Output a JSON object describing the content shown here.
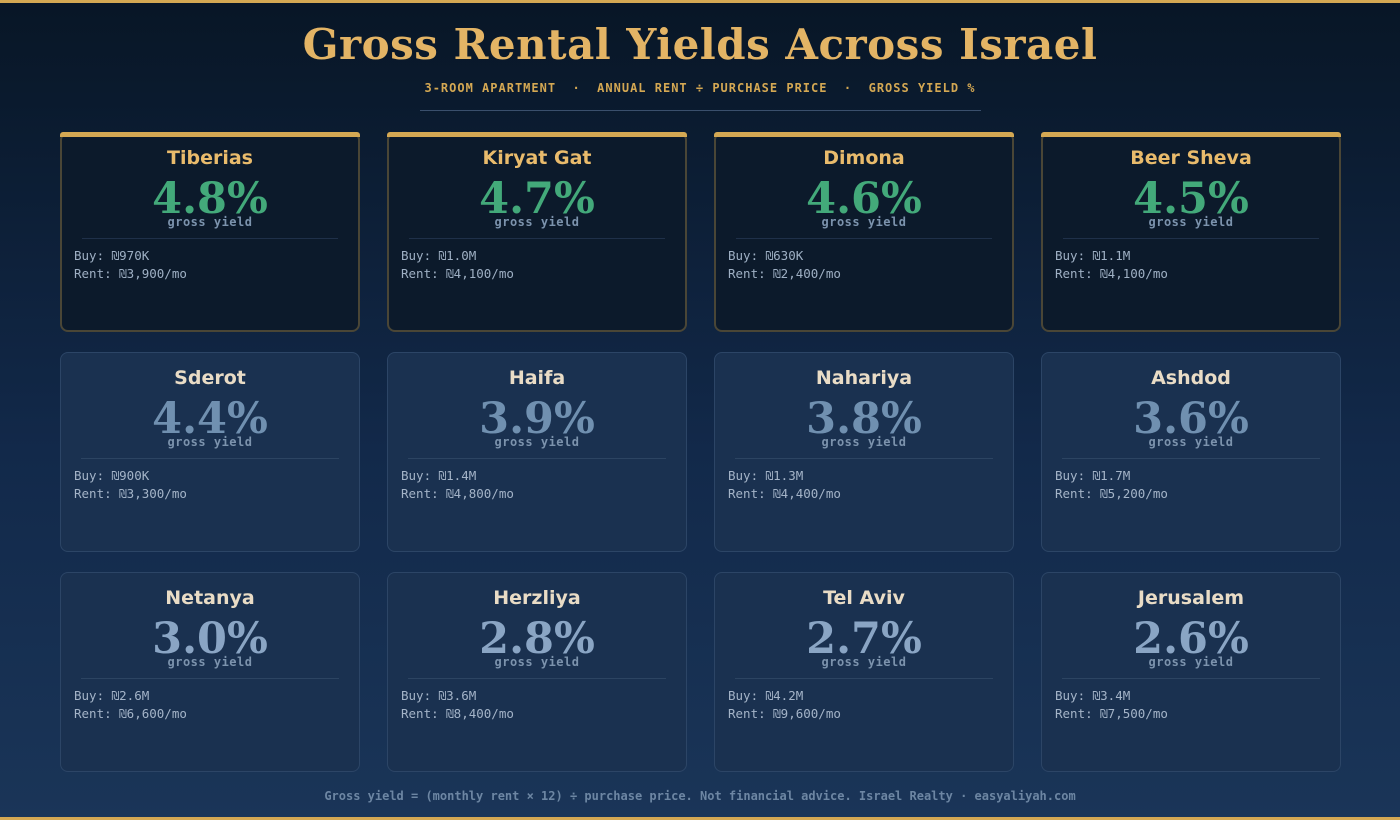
{
  "header": {
    "title": "Gross Rental Yields Across Israel",
    "subtitle": "3-ROOM APARTMENT  ·  ANNUAL RENT ÷ PURCHASE PRICE  ·  GROSS YIELD %"
  },
  "yield_label": "gross yield",
  "cities": [
    {
      "name": "Tiberias",
      "yield": "4.8%",
      "buy": "Buy: ₪970K",
      "rent": "Rent: ₪3,900/mo"
    },
    {
      "name": "Kiryat Gat",
      "yield": "4.7%",
      "buy": "Buy: ₪1.0M",
      "rent": "Rent: ₪4,100/mo"
    },
    {
      "name": "Dimona",
      "yield": "4.6%",
      "buy": "Buy: ₪630K",
      "rent": "Rent: ₪2,400/mo"
    },
    {
      "name": "Beer Sheva",
      "yield": "4.5%",
      "buy": "Buy: ₪1.1M",
      "rent": "Rent: ₪4,100/mo"
    },
    {
      "name": "Sderot",
      "yield": "4.4%",
      "buy": "Buy: ₪900K",
      "rent": "Rent: ₪3,300/mo"
    },
    {
      "name": "Haifa",
      "yield": "3.9%",
      "buy": "Buy: ₪1.4M",
      "rent": "Rent: ₪4,800/mo"
    },
    {
      "name": "Nahariya",
      "yield": "3.8%",
      "buy": "Buy: ₪1.3M",
      "rent": "Rent: ₪4,400/mo"
    },
    {
      "name": "Ashdod",
      "yield": "3.6%",
      "buy": "Buy: ₪1.7M",
      "rent": "Rent: ₪5,200/mo"
    },
    {
      "name": "Netanya",
      "yield": "3.0%",
      "buy": "Buy: ₪2.6M",
      "rent": "Rent: ₪6,600/mo"
    },
    {
      "name": "Herzliya",
      "yield": "2.8%",
      "buy": "Buy: ₪3.6M",
      "rent": "Rent: ₪8,400/mo"
    },
    {
      "name": "Tel Aviv",
      "yield": "2.7%",
      "buy": "Buy: ₪4.2M",
      "rent": "Rent: ₪9,600/mo"
    },
    {
      "name": "Jerusalem",
      "yield": "2.6%",
      "buy": "Buy: ₪3.4M",
      "rent": "Rent: ₪7,500/mo"
    }
  ],
  "footer": "Gross yield = (monthly rent × 12) ÷ purchase price. Not financial advice. Israel Realty · easyaliyah.com",
  "colors": {
    "gold": "#d4a853",
    "high_yield": "#43a97a",
    "mid_yield": "#7090b0",
    "low_yield": "#8aa5c4"
  }
}
